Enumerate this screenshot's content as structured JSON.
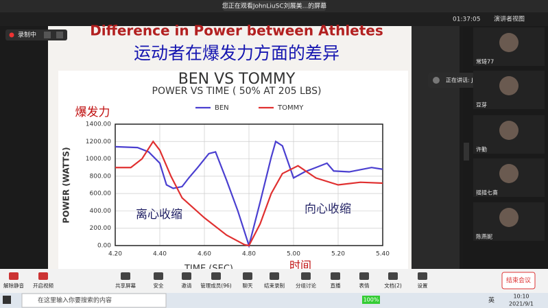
{
  "topbar": {
    "viewing": "您正在观看JohnLiuSC刘展美...的屏幕",
    "timer": "01:37:05",
    "view_mode": "演讲者视图",
    "recording": "录制中"
  },
  "slide": {
    "title": "Difference in Power between Athletes",
    "subtitle_cn": "运动者在爆发力方面的差异",
    "chart": {
      "type": "line",
      "title": "Ben vs Tommy",
      "subtitle": "Power vs Time ( 50% at 205 lbs)",
      "y_label": "Power (Watts)",
      "y_label_cn": "爆发力",
      "x_label": "Time (sec)",
      "x_label_cn": "时间",
      "annotations": [
        "离心收缩",
        "向心收缩"
      ],
      "xlim": [
        4.2,
        5.4
      ],
      "xticks": [
        {
          "value": 4.2,
          "label": "4.20"
        },
        {
          "value": 4.4,
          "label": "4.40"
        },
        {
          "value": 4.6,
          "label": "4.60"
        },
        {
          "value": 4.8,
          "label": "4.80"
        },
        {
          "value": 5,
          "label": "5.00"
        },
        {
          "value": 5.2,
          "label": "5.20"
        },
        {
          "value": 5.4,
          "label": "5.40"
        }
      ],
      "ylim": [
        0,
        1400
      ],
      "yticks": [
        {
          "value": 0,
          "label": "0.00"
        },
        {
          "value": 200,
          "label": "200.00"
        },
        {
          "value": 400,
          "label": "400.00"
        },
        {
          "value": 600,
          "label": "600.00"
        },
        {
          "value": 800,
          "label": "800.00"
        },
        {
          "value": 1000,
          "label": "1000.00"
        },
        {
          "value": 1200,
          "label": "1200.00"
        },
        {
          "value": 1400,
          "label": "1400.00"
        }
      ],
      "grid": true,
      "series": [
        {
          "name": "Ben",
          "color": "#4a3fd0",
          "x": [
            4.2,
            4.3,
            4.35,
            4.4,
            4.43,
            4.46,
            4.5,
            4.53,
            4.57,
            4.62,
            4.65,
            4.7,
            4.75,
            4.8,
            4.85,
            4.9,
            4.92,
            4.95,
            5.0,
            5.05,
            5.1,
            5.15,
            5.18,
            5.25,
            5.35,
            5.4
          ],
          "values": [
            1140,
            1130,
            1080,
            950,
            700,
            660,
            680,
            780,
            900,
            1060,
            1080,
            750,
            400,
            0,
            500,
            1020,
            1200,
            1150,
            780,
            850,
            900,
            950,
            860,
            850,
            900,
            880
          ]
        },
        {
          "name": "Tommy",
          "color": "#e03030",
          "x": [
            4.2,
            4.27,
            4.32,
            4.37,
            4.4,
            4.45,
            4.5,
            4.6,
            4.7,
            4.78,
            4.8,
            4.85,
            4.9,
            4.95,
            5.02,
            5.1,
            5.2,
            5.3,
            5.4
          ],
          "values": [
            900,
            900,
            1000,
            1200,
            1100,
            800,
            550,
            320,
            120,
            10,
            0,
            250,
            600,
            830,
            920,
            780,
            700,
            730,
            720
          ]
        }
      ]
    }
  },
  "speaking": "正在讲话: JohnLiuSC刘展...",
  "gallery": [
    "常琦77",
    "豆芽",
    "许勤",
    "摇摇七喜",
    "陈燕妮"
  ],
  "toolbar": [
    "解除静音",
    "开启视频",
    "共享屏幕",
    "安全",
    "邀请",
    "管理成员(96)",
    "聊天",
    "结束录制",
    "分组讨论",
    "直播",
    "表情",
    "文档(2)",
    "设置"
  ],
  "end_meeting": "结束会议",
  "taskbar": {
    "search": "在这里输入你要搜索的内容",
    "battery": "100%",
    "ime": "英",
    "time": "10:10",
    "date": "2021/9/1"
  }
}
